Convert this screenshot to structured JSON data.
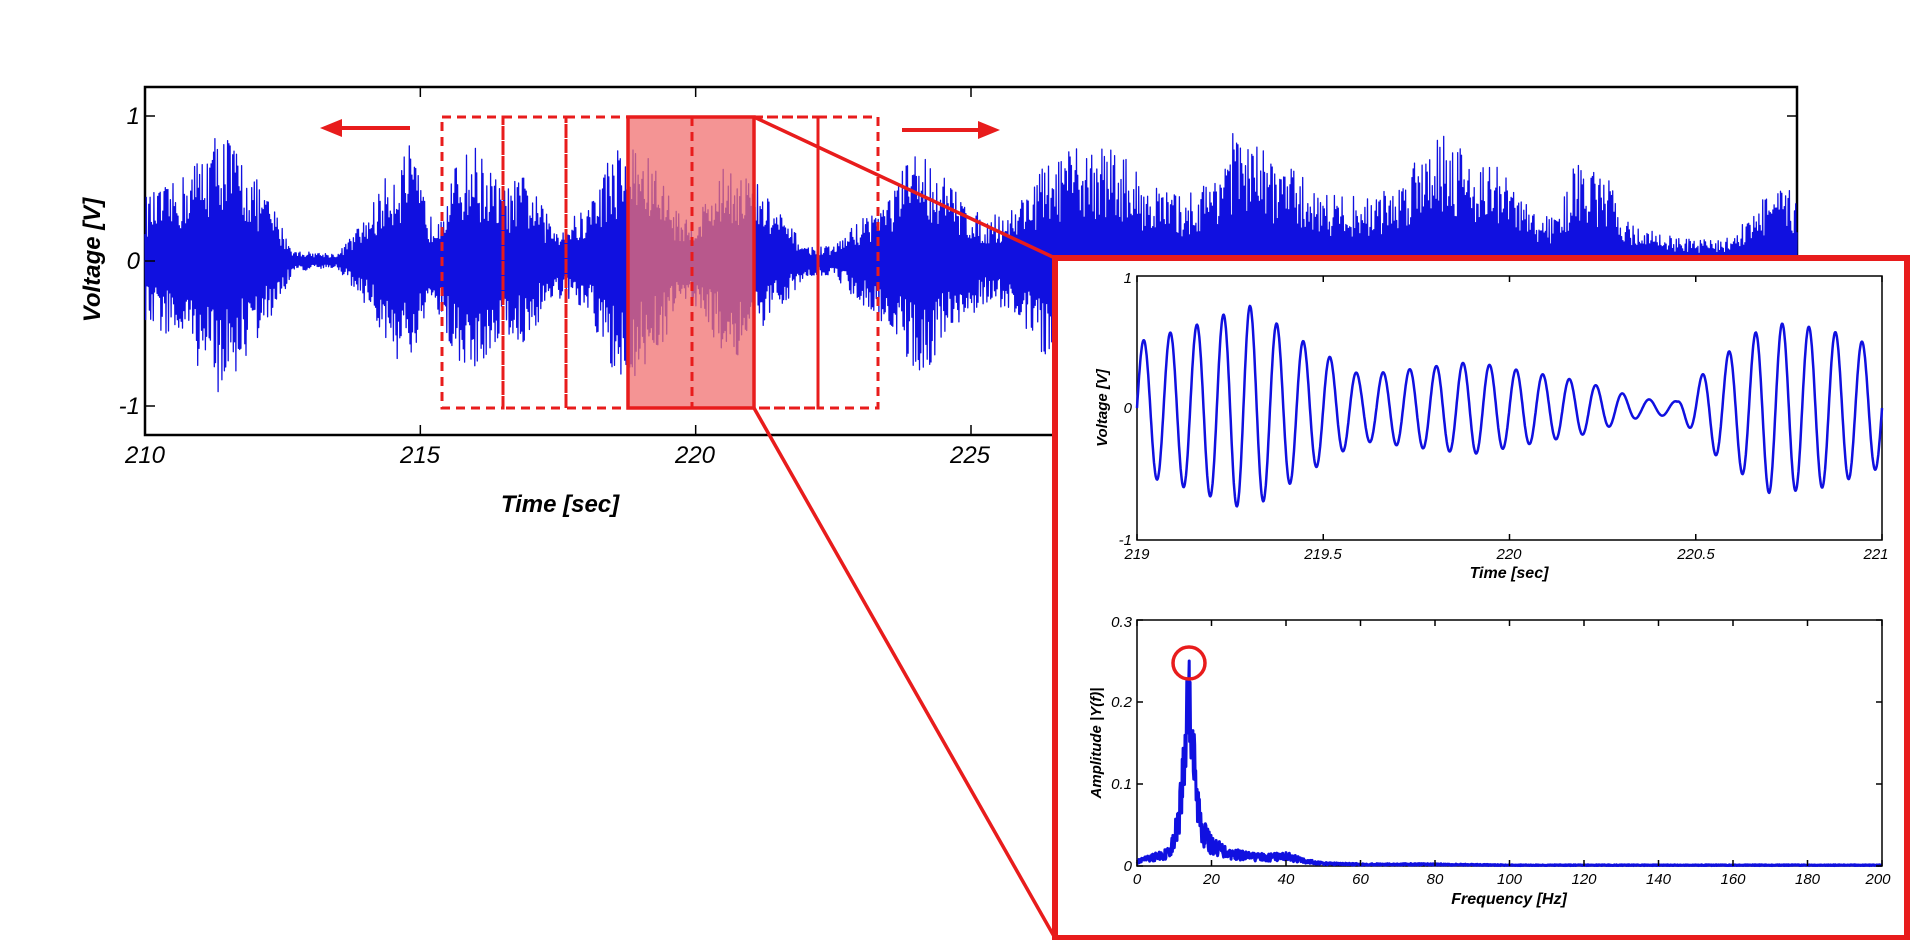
{
  "colors": {
    "signal": "#1010e0",
    "highlight": "#e81c1c",
    "highlight_fill": "#f07070",
    "axes": "#000000"
  },
  "chart_data": [
    {
      "type": "line",
      "panel": "main-signal",
      "xlabel": "Time [sec]",
      "ylabel": "Voltage [V]",
      "xlim": [
        210,
        240
      ],
      "ylim": [
        -1.2,
        1.2
      ],
      "x_ticks": [
        210,
        215,
        220,
        225
      ],
      "y_ticks": [
        1,
        0,
        -1
      ],
      "x_tick_labels": [
        "210",
        "215",
        "220",
        "225"
      ],
      "y_tick_labels": [
        "1",
        "0",
        "-1"
      ],
      "grid": false,
      "envelope": {
        "x": [
          210.0,
          210.6,
          211.0,
          211.4,
          211.8,
          212.3,
          212.7,
          213.5,
          214.0,
          214.4,
          214.8,
          215.2,
          215.7,
          216.0,
          216.5,
          216.9,
          217.4,
          218.0,
          218.5,
          218.9,
          219.3,
          219.6,
          219.9,
          220.2,
          220.6,
          221.0,
          221.5,
          222.0,
          222.5,
          223.0,
          223.5,
          224.0,
          224.3,
          224.7,
          225.2,
          225.7,
          226.3,
          227.0,
          227.6,
          228.2,
          228.8,
          229.3,
          229.7,
          230.2,
          230.8,
          231.3,
          231.8,
          232.3,
          232.8,
          233.2,
          233.6,
          234.0,
          234.6,
          235.2,
          235.6,
          236.0,
          236.6,
          237.0,
          237.5,
          238.0,
          238.4,
          238.7,
          239.1,
          239.5,
          240.0
        ],
        "values": [
          0.45,
          0.55,
          0.75,
          0.95,
          0.7,
          0.4,
          0.07,
          0.05,
          0.3,
          0.6,
          0.8,
          0.3,
          0.7,
          0.8,
          0.5,
          0.6,
          0.25,
          0.35,
          0.8,
          0.82,
          0.65,
          0.4,
          0.25,
          0.45,
          0.7,
          0.6,
          0.35,
          0.1,
          0.1,
          0.3,
          0.45,
          0.8,
          0.7,
          0.5,
          0.3,
          0.35,
          0.65,
          0.8,
          0.8,
          0.55,
          0.45,
          0.55,
          0.9,
          0.8,
          0.65,
          0.5,
          0.45,
          0.45,
          0.55,
          0.85,
          0.95,
          0.75,
          0.65,
          0.35,
          0.3,
          0.7,
          0.55,
          0.25,
          0.2,
          0.15,
          0.15,
          0.15,
          0.3,
          0.5,
          0.48
        ]
      }
    },
    {
      "type": "line",
      "panel": "zoom-signal",
      "xlabel": "Time [sec]",
      "ylabel": "Voltage [V]",
      "xlim": [
        219,
        221
      ],
      "ylim": [
        -1,
        1
      ],
      "x_ticks": [
        219,
        219.5,
        220,
        220.5,
        221
      ],
      "x_tick_labels": [
        "219",
        "219.5",
        "220",
        "220.5",
        "221"
      ],
      "y_ticks": [
        1,
        0,
        -1
      ],
      "y_tick_labels": [
        "1",
        "0",
        "-1"
      ],
      "grid": false,
      "oscillation_frequency_hz": 14,
      "envelope": {
        "x": [
          219.0,
          219.15,
          219.3,
          219.45,
          219.6,
          219.75,
          219.9,
          220.0,
          220.2,
          220.35,
          220.45,
          220.55,
          220.7,
          220.85,
          221.0
        ],
        "values": [
          0.5,
          0.62,
          0.78,
          0.5,
          0.25,
          0.3,
          0.35,
          0.3,
          0.2,
          0.07,
          0.05,
          0.35,
          0.65,
          0.6,
          0.45
        ]
      }
    },
    {
      "type": "line",
      "panel": "spectrum",
      "xlabel": "Frequency [Hz]",
      "ylabel": "Amplitude |Y(f)|",
      "xlim": [
        0,
        200
      ],
      "ylim": [
        0,
        0.3
      ],
      "x_ticks": [
        0,
        20,
        40,
        60,
        80,
        100,
        120,
        140,
        160,
        180,
        200
      ],
      "x_tick_labels": [
        "0",
        "20",
        "40",
        "60",
        "80",
        "100",
        "120",
        "140",
        "160",
        "180",
        "200"
      ],
      "y_ticks": [
        0,
        0.1,
        0.2,
        0.3
      ],
      "y_tick_labels": [
        "0",
        "0.1",
        "0.2",
        "0.3"
      ],
      "grid": false,
      "peak": {
        "x": 14,
        "y": 0.25
      },
      "spectrum": {
        "x": [
          0,
          4,
          8,
          10,
          12,
          13,
          14,
          15,
          16,
          18,
          20,
          25,
          30,
          35,
          40,
          45,
          50,
          60,
          80,
          100,
          150,
          200
        ],
        "values": [
          0.005,
          0.01,
          0.015,
          0.03,
          0.09,
          0.16,
          0.25,
          0.14,
          0.08,
          0.04,
          0.025,
          0.015,
          0.012,
          0.01,
          0.012,
          0.006,
          0.003,
          0.002,
          0.002,
          0.001,
          0.001,
          0.001
        ]
      }
    }
  ],
  "window_annotation": {
    "windows_sec": [
      [
        215.4,
        216.5
      ],
      [
        216.5,
        217.6
      ],
      [
        217.6,
        218.9
      ],
      [
        218.9,
        221.0
      ],
      [
        221.0,
        222.2
      ],
      [
        222.2,
        223.3
      ]
    ],
    "selected_index": 3,
    "shift_arrows": [
      "left",
      "right"
    ]
  }
}
